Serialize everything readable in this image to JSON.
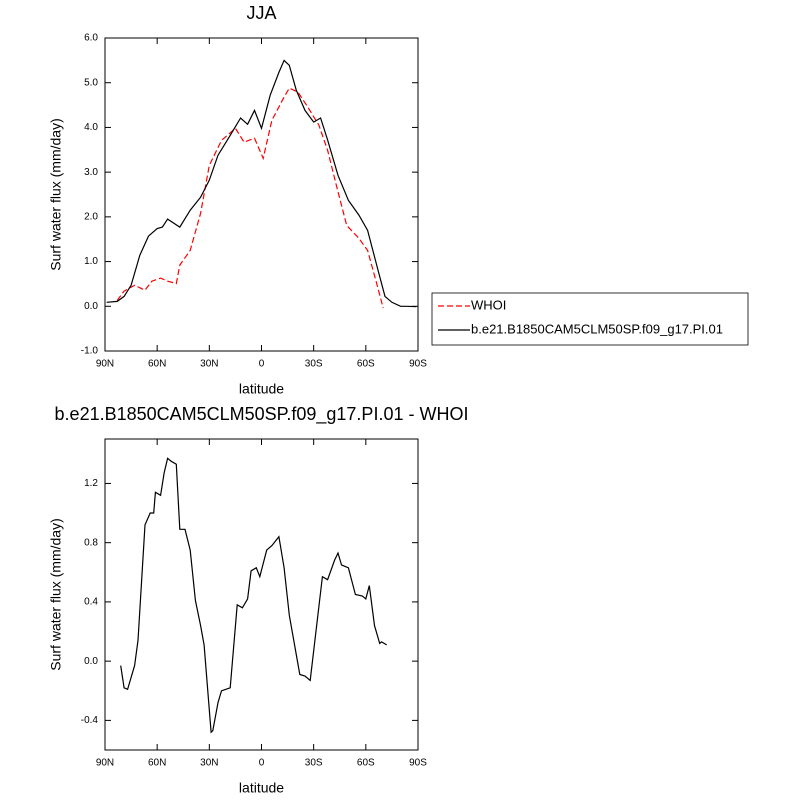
{
  "chart_data": [
    {
      "type": "line",
      "title": "JJA",
      "xlabel": "latitude",
      "ylabel": "Surf water flux (mm/day)",
      "xlim": [
        90,
        -90
      ],
      "xticks": [
        {
          "value": 90,
          "label": "90N"
        },
        {
          "value": 60,
          "label": "60N"
        },
        {
          "value": 30,
          "label": "30N"
        },
        0,
        {
          "value": -30,
          "label": "30S"
        },
        {
          "value": -60,
          "label": "60S"
        },
        {
          "value": -90,
          "label": "90S"
        }
      ],
      "ylim": [
        -1,
        6
      ],
      "yticks": [
        {
          "value": -1,
          "label": "-1.0"
        },
        {
          "value": 0,
          "label": "0.0"
        },
        {
          "value": 1,
          "label": "1.0"
        },
        {
          "value": 2,
          "label": "2.0"
        },
        {
          "value": 3,
          "label": "3.0"
        },
        {
          "value": 4,
          "label": "4.0"
        },
        {
          "value": 5,
          "label": "5.0"
        },
        {
          "value": 6,
          "label": "6.0"
        }
      ],
      "legend": "right",
      "series": [
        {
          "name": "WHOI",
          "color": "#ff0000",
          "dashed": true,
          "x": [
            83,
            79,
            73,
            67,
            63,
            58,
            54,
            49,
            47,
            41,
            35,
            30,
            23,
            15,
            10,
            4,
            -1,
            -6,
            -12,
            -16,
            -21,
            -27,
            -33,
            -38,
            -43,
            -49,
            -56,
            -61,
            -66,
            -70
          ],
          "values": [
            0.13,
            0.34,
            0.47,
            0.36,
            0.56,
            0.63,
            0.56,
            0.51,
            0.92,
            1.25,
            2.08,
            3.15,
            3.71,
            3.98,
            3.67,
            3.76,
            3.31,
            4.16,
            4.61,
            4.88,
            4.79,
            4.43,
            4.05,
            3.49,
            2.71,
            1.81,
            1.52,
            1.25,
            0.54,
            -0.04
          ]
        },
        {
          "name": "b.e21.B1850CAM5CLM50SP.f09_g17.PI.01",
          "color": "#000000",
          "dashed": false,
          "x": [
            89,
            83,
            79,
            75,
            70,
            65,
            60,
            57,
            54,
            47,
            41,
            35,
            30,
            25,
            19,
            12,
            8,
            4,
            0,
            -5,
            -10,
            -13,
            -16,
            -20,
            -25,
            -30,
            -34,
            -38,
            -44,
            -50,
            -56,
            -61,
            -67,
            -71,
            -75,
            -80,
            -84,
            -89
          ],
          "values": [
            0.09,
            0.11,
            0.22,
            0.47,
            1.14,
            1.57,
            1.74,
            1.77,
            1.95,
            1.77,
            2.15,
            2.44,
            2.82,
            3.38,
            3.76,
            4.21,
            4.07,
            4.38,
            3.98,
            4.72,
            5.23,
            5.5,
            5.39,
            4.83,
            4.38,
            4.12,
            4.21,
            3.72,
            2.93,
            2.37,
            2.04,
            1.7,
            0.81,
            0.22,
            0.09,
            0.0,
            0.0,
            -0.01
          ]
        }
      ]
    },
    {
      "type": "line",
      "title": "b.e21.B1850CAM5CLM50SP.f09_g17.PI.01 - WHOI",
      "xlabel": "latitude",
      "ylabel": "Surf water flux (mm/day)",
      "xlim": [
        90,
        -90
      ],
      "xticks": [
        {
          "value": 90,
          "label": "90N"
        },
        {
          "value": 60,
          "label": "60N"
        },
        {
          "value": 30,
          "label": "30N"
        },
        0,
        {
          "value": -30,
          "label": "30S"
        },
        {
          "value": -60,
          "label": "60S"
        },
        {
          "value": -90,
          "label": "90S"
        }
      ],
      "ylim": [
        -0.6,
        1.5
      ],
      "yticks": [
        {
          "value": -0.4,
          "label": "-0.4"
        },
        {
          "value": 0,
          "label": "0.0"
        },
        {
          "value": 0.4,
          "label": "0.4"
        },
        {
          "value": 0.8,
          "label": "0.8"
        },
        {
          "value": 1.2,
          "label": "1.2"
        }
      ],
      "series": [
        {
          "color": "#000000",
          "dashed": false,
          "x": [
            81,
            79,
            77,
            73,
            71,
            67,
            64,
            62,
            61,
            58,
            56,
            54,
            52,
            49,
            47,
            44,
            41,
            38,
            35,
            33,
            29,
            28,
            25,
            23,
            18,
            14,
            11,
            8,
            6,
            3,
            1,
            -3,
            -6,
            -10,
            -13,
            -16,
            -22,
            -25,
            -28,
            -35,
            -38,
            -42,
            -44,
            -46,
            -50,
            -54,
            -58,
            -60,
            -62,
            -65,
            -68,
            -69,
            -72
          ],
          "values": [
            -0.03,
            -0.18,
            -0.19,
            -0.03,
            0.14,
            0.92,
            1.0,
            1.0,
            1.14,
            1.12,
            1.27,
            1.37,
            1.35,
            1.33,
            0.89,
            0.89,
            0.75,
            0.41,
            0.24,
            0.11,
            -0.48,
            -0.47,
            -0.28,
            -0.2,
            -0.18,
            0.38,
            0.36,
            0.42,
            0.61,
            0.63,
            0.57,
            0.75,
            0.78,
            0.84,
            0.63,
            0.31,
            -0.09,
            -0.1,
            -0.13,
            0.57,
            0.55,
            0.68,
            0.73,
            0.65,
            0.63,
            0.45,
            0.44,
            0.42,
            0.51,
            0.24,
            0.12,
            0.13,
            0.11
          ]
        }
      ]
    }
  ]
}
